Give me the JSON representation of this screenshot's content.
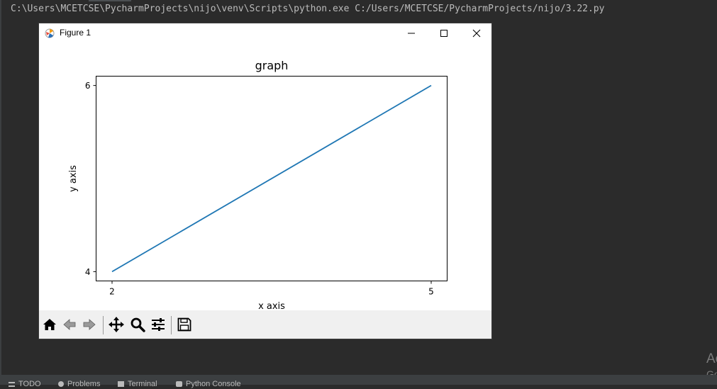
{
  "console": {
    "command": "C:\\Users\\MCETCSE\\PycharmProjects\\nijo\\venv\\Scripts\\python.exe C:/Users/MCETCSE/PycharmProjects/nijo/3.22.py"
  },
  "figure_window": {
    "title": "Figure 1",
    "controls": [
      "minimize",
      "maximize",
      "close"
    ],
    "toolbar_icons": [
      "home-icon",
      "back-icon",
      "forward-icon",
      "pan-icon",
      "zoom-icon",
      "configure-icon",
      "save-icon"
    ]
  },
  "chart_data": {
    "type": "line",
    "title": "graph",
    "xlabel": "x axis",
    "ylabel": "y axis",
    "x": [
      2,
      5
    ],
    "series": [
      {
        "values": [
          4,
          6
        ],
        "color": "#1f77b4"
      }
    ],
    "xticks": [
      "2",
      "5"
    ],
    "yticks": [
      "4",
      "6"
    ],
    "xlim": [
      1.85,
      5.15
    ],
    "ylim": [
      3.9,
      6.1
    ],
    "grid": false
  },
  "watermark": {
    "line1": "Ac",
    "line2": "Go"
  },
  "status_bar": {
    "items": [
      {
        "label": "TODO",
        "icon": "list-icon"
      },
      {
        "label": "Problems",
        "icon": "problems-icon"
      },
      {
        "label": "Terminal",
        "icon": "terminal-icon"
      },
      {
        "label": "Python Console",
        "icon": "python-console-icon"
      }
    ]
  }
}
